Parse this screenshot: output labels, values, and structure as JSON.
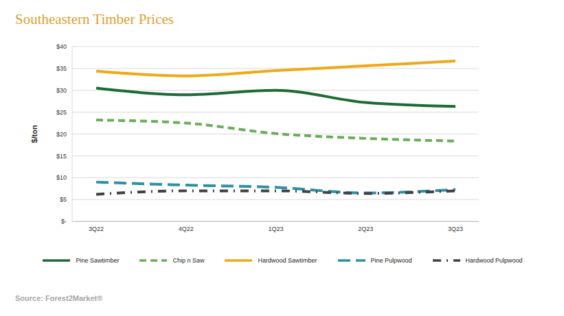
{
  "chart_data": {
    "type": "line",
    "title": "Southeastern Timber Prices",
    "y_label": "$/ton",
    "source": "Source: Forest2Market®",
    "categories": [
      "3Q22",
      "4Q22",
      "1Q23",
      "2Q23",
      "3Q23"
    ],
    "series": [
      {
        "name": "Pine Sawtimber",
        "color": "#1e6b35",
        "line_style": "solid",
        "values": [
          30.5,
          29.0,
          30.0,
          27.2,
          26.3
        ]
      },
      {
        "name": "Chip n Saw",
        "color": "#6aad5a",
        "line_style": "dashed",
        "values": [
          23.2,
          22.5,
          20.1,
          19.0,
          18.4
        ]
      },
      {
        "name": "Hardwood Sawtimber",
        "color": "#f0a818",
        "line_style": "solid",
        "values": [
          34.4,
          33.3,
          34.5,
          35.6,
          36.7
        ]
      },
      {
        "name": "Pine Pulpwood",
        "color": "#2e8fa6",
        "line_style": "longdash",
        "values": [
          9.0,
          8.3,
          7.8,
          6.5,
          7.3
        ]
      },
      {
        "name": "Hardwood Pulpwood",
        "color": "#404040",
        "line_style": "dashdot",
        "values": [
          6.2,
          7.0,
          7.0,
          6.4,
          7.0
        ]
      }
    ],
    "ylim": [
      0,
      40
    ],
    "yticks": [
      {
        "value": 0,
        "label": "$-"
      },
      {
        "value": 5,
        "label": "$5"
      },
      {
        "value": 10,
        "label": "$10"
      },
      {
        "value": 15,
        "label": "$15"
      },
      {
        "value": 20,
        "label": "$20"
      },
      {
        "value": 25,
        "label": "$25"
      },
      {
        "value": 30,
        "label": "$30"
      },
      {
        "value": 35,
        "label": "$35"
      },
      {
        "value": 40,
        "label": "$40"
      }
    ],
    "grid": true,
    "legend": "bottom"
  }
}
